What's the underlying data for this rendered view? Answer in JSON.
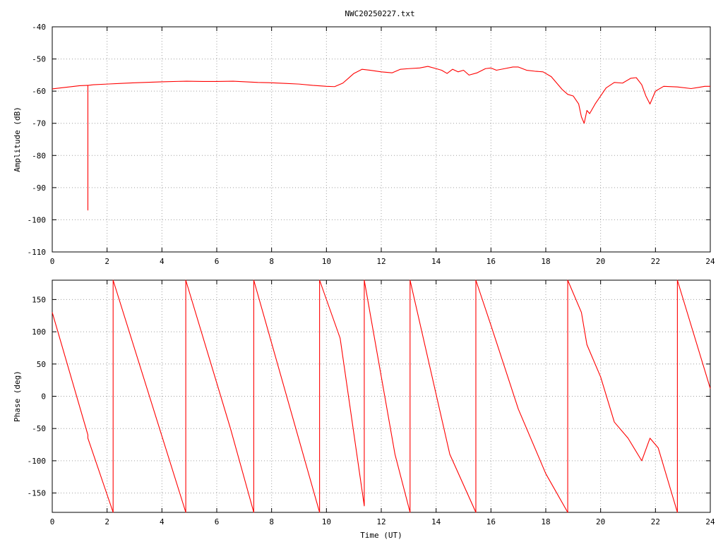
{
  "title": "NWC20250227.txt",
  "colors": {
    "trace": "#ff0000",
    "axes": "#000000",
    "grid": "#a0a0a0",
    "background": "#ffffff"
  },
  "chart_data": [
    {
      "type": "line",
      "title": "NWC20250227.txt",
      "xlabel": "",
      "ylabel": "Amplitude (dB)",
      "xlim": [
        0,
        24
      ],
      "ylim": [
        -110,
        -40
      ],
      "grid": true,
      "xticks": [
        0,
        2,
        4,
        6,
        8,
        10,
        12,
        14,
        16,
        18,
        20,
        22,
        24
      ],
      "yticks": [
        -110,
        -100,
        -90,
        -80,
        -70,
        -60,
        -50,
        -40
      ],
      "series": [
        {
          "color": "#ff0000",
          "x": [
            0,
            0.5,
            1.0,
            1.3,
            1.3,
            1.3,
            1.32,
            1.5,
            2,
            2.5,
            3,
            4,
            4.9,
            5.5,
            6,
            6.6,
            7.5,
            8,
            8.5,
            9,
            9.5,
            10,
            10.3,
            10.6,
            10.8,
            11,
            11.3,
            11.6,
            12,
            12.4,
            12.7,
            13,
            13.4,
            13.7,
            14,
            14.2,
            14.4,
            14.6,
            14.8,
            15,
            15.2,
            15.5,
            15.8,
            16,
            16.2,
            16.5,
            16.8,
            17,
            17.3,
            17.6,
            17.9,
            18.2,
            18.4,
            18.6,
            18.8,
            19.0,
            19.2,
            19.3,
            19.4,
            19.5,
            19.6,
            19.8,
            20.0,
            20.2,
            20.5,
            20.8,
            21.1,
            21.3,
            21.5,
            21.65,
            21.8,
            22.0,
            22.3,
            22.8,
            23.3,
            23.6,
            23.8,
            24
          ],
          "y": [
            -59.3,
            -58.8,
            -58.3,
            -58.2,
            -97,
            -58.2,
            -58.2,
            -58.0,
            -57.8,
            -57.6,
            -57.4,
            -57.1,
            -56.9,
            -57.0,
            -57.0,
            -56.9,
            -57.3,
            -57.4,
            -57.6,
            -57.8,
            -58.2,
            -58.5,
            -58.6,
            -57.5,
            -56.0,
            -54.5,
            -53.2,
            -53.5,
            -54.0,
            -54.3,
            -53.2,
            -53.0,
            -52.8,
            -52.3,
            -53.0,
            -53.5,
            -54.5,
            -53.2,
            -54.0,
            -53.5,
            -55.0,
            -54.3,
            -53.0,
            -52.8,
            -53.5,
            -53.0,
            -52.5,
            -52.5,
            -53.5,
            -53.8,
            -54.0,
            -55.5,
            -57.5,
            -59.5,
            -61.0,
            -61.5,
            -64.0,
            -68.0,
            -70.0,
            -66.0,
            -67.0,
            -64.0,
            -61.5,
            -59.0,
            -57.3,
            -57.5,
            -56.0,
            -55.8,
            -58.0,
            -61.5,
            -64.0,
            -60.0,
            -58.5,
            -58.7,
            -59.2,
            -58.8,
            -58.5,
            -58.5
          ]
        }
      ]
    },
    {
      "type": "line",
      "title": "",
      "xlabel": "Time (UT)",
      "ylabel": "Phase (deg)",
      "xlim": [
        0,
        24
      ],
      "ylim": [
        -180,
        180
      ],
      "grid": true,
      "xticks": [
        0,
        2,
        4,
        6,
        8,
        10,
        12,
        14,
        16,
        18,
        20,
        22,
        24
      ],
      "yticks": [
        -150,
        -100,
        -50,
        0,
        50,
        100,
        150
      ],
      "series": [
        {
          "color": "#ff0000",
          "x": [
            0,
            1.3,
            1.3,
            2.22,
            2.22,
            4.87,
            4.87,
            6.5,
            7.35,
            7.35,
            9.75,
            9.75,
            10.5,
            11.38,
            11.38,
            12.5,
            13.05,
            13.05,
            14.5,
            15.45,
            15.45,
            16.0,
            17.0,
            18.0,
            18.8,
            18.8,
            19.3,
            19.5,
            20.0,
            20.5,
            21.0,
            21.5,
            21.8,
            22.1,
            22.8,
            22.8,
            24
          ],
          "y": [
            130,
            -60,
            -65,
            -180,
            180,
            -180,
            180,
            -50,
            -180,
            180,
            -180,
            180,
            90,
            -170,
            180,
            -90,
            -180,
            180,
            -90,
            -180,
            180,
            110,
            -20,
            -120,
            -180,
            180,
            130,
            80,
            30,
            -40,
            -65,
            -100,
            -65,
            -80,
            -180,
            180,
            12
          ]
        }
      ]
    }
  ]
}
